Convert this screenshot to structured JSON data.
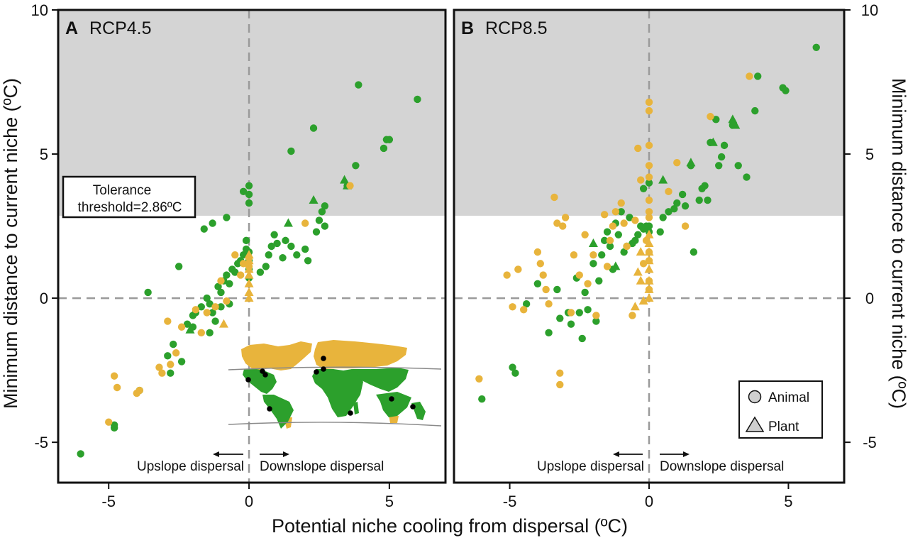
{
  "figure": {
    "xlabel": "Potential niche cooling from dispersal (ºC)",
    "ylabel_left": "Minimum distance to current niche (ºC)",
    "ylabel_right": "Minimum distance to current niche (ºC)",
    "threshold_label_line1": "Tolerance",
    "threshold_label_line2": "threshold=2.86ºC",
    "upslope_label": "Upslope dispersal",
    "downslope_label": "Downslope dispersal",
    "legend_animal": "Animal",
    "legend_plant": "Plant",
    "colors": {
      "green": "#2ca02c",
      "orange": "#e8b43c",
      "shade": "#d4d4d4",
      "frame": "#111111",
      "zero_line": "#9a9a9a"
    }
  },
  "chart_data": [
    {
      "type": "scatter",
      "panel_letter": "A",
      "panel_name": "RCP4.5",
      "xlim": [
        -6.8,
        7.0
      ],
      "ylim": [
        -6.4,
        10.0
      ],
      "xticks": [
        -5,
        0,
        5
      ],
      "xtick_labels": [
        "-5",
        "0",
        "5"
      ],
      "yticks": [
        -5,
        0,
        5,
        10
      ],
      "ytick_labels": [
        "-5",
        "0",
        "5",
        "10"
      ],
      "threshold": 2.86,
      "series": [
        {
          "color": "green",
          "marker": "circle",
          "points": [
            [
              -6.0,
              -5.4
            ],
            [
              -4.8,
              -4.4
            ],
            [
              -4.8,
              -4.5
            ],
            [
              -3.9,
              -3.2
            ],
            [
              -3.6,
              0.2
            ],
            [
              -2.9,
              -2.0
            ],
            [
              -2.8,
              -2.6
            ],
            [
              -2.7,
              -1.6
            ],
            [
              -2.4,
              -2.2
            ],
            [
              -2.5,
              1.1
            ],
            [
              -2.2,
              -0.9
            ],
            [
              -2.0,
              -0.6
            ],
            [
              -2.0,
              -1.0
            ],
            [
              -1.9,
              -0.5
            ],
            [
              -1.7,
              -0.3
            ],
            [
              -1.5,
              0.0
            ],
            [
              -1.4,
              -0.2
            ],
            [
              -1.4,
              -1.2
            ],
            [
              -1.3,
              -0.5
            ],
            [
              -1.2,
              -0.8
            ],
            [
              -1.1,
              0.4
            ],
            [
              -1.0,
              0.2
            ],
            [
              -1.0,
              -0.3
            ],
            [
              -0.9,
              0.6
            ],
            [
              -0.8,
              0.8
            ],
            [
              -0.7,
              0.5
            ],
            [
              -0.7,
              -0.2
            ],
            [
              -0.6,
              1.0
            ],
            [
              -0.5,
              0.9
            ],
            [
              -0.4,
              1.2
            ],
            [
              -0.3,
              1.3
            ],
            [
              -0.2,
              1.5
            ],
            [
              -0.1,
              1.7
            ],
            [
              -0.1,
              2.0
            ],
            [
              0.0,
              1.6
            ],
            [
              0.0,
              1.3
            ],
            [
              0.0,
              1.0
            ],
            [
              0.0,
              0.7
            ],
            [
              -0.2,
              3.7
            ],
            [
              0.0,
              3.6
            ],
            [
              0.0,
              3.9
            ],
            [
              0.0,
              3.3
            ],
            [
              -1.6,
              2.4
            ],
            [
              -1.3,
              2.6
            ],
            [
              -0.8,
              2.8
            ],
            [
              0.4,
              0.9
            ],
            [
              0.6,
              1.1
            ],
            [
              0.7,
              1.5
            ],
            [
              0.8,
              1.8
            ],
            [
              0.9,
              2.2
            ],
            [
              1.0,
              1.9
            ],
            [
              1.2,
              1.4
            ],
            [
              1.3,
              2.0
            ],
            [
              1.5,
              1.8
            ],
            [
              1.7,
              1.5
            ],
            [
              2.0,
              1.7
            ],
            [
              2.1,
              1.3
            ],
            [
              2.4,
              2.3
            ],
            [
              2.5,
              2.7
            ],
            [
              2.6,
              3.0
            ],
            [
              2.7,
              3.2
            ],
            [
              2.7,
              2.5
            ],
            [
              1.5,
              5.1
            ],
            [
              2.3,
              5.9
            ],
            [
              3.5,
              3.9
            ],
            [
              3.8,
              4.6
            ],
            [
              3.9,
              7.4
            ],
            [
              4.8,
              5.2
            ],
            [
              4.9,
              5.5
            ],
            [
              5.0,
              5.5
            ],
            [
              6.0,
              6.9
            ]
          ]
        },
        {
          "color": "green",
          "marker": "triangle",
          "points": [
            [
              -2.1,
              -1.1
            ],
            [
              1.4,
              2.6
            ],
            [
              2.3,
              3.4
            ],
            [
              3.4,
              4.1
            ],
            [
              3.5,
              3.9
            ]
          ]
        },
        {
          "color": "orange",
          "marker": "circle",
          "points": [
            [
              -5.0,
              -4.3
            ],
            [
              -4.8,
              -2.7
            ],
            [
              -4.7,
              -3.1
            ],
            [
              -4.0,
              -3.3
            ],
            [
              -3.9,
              -3.2
            ],
            [
              -3.2,
              -2.4
            ],
            [
              -3.1,
              -2.6
            ],
            [
              -2.9,
              -0.8
            ],
            [
              -2.8,
              -2.3
            ],
            [
              -2.6,
              -1.9
            ],
            [
              -2.4,
              -1.0
            ],
            [
              -1.9,
              -0.4
            ],
            [
              -1.7,
              -1.2
            ],
            [
              -1.5,
              -0.5
            ],
            [
              -1.2,
              -0.3
            ],
            [
              -1.0,
              0.6
            ],
            [
              -0.8,
              -0.1
            ],
            [
              -0.5,
              1.5
            ],
            [
              -0.3,
              0.8
            ],
            [
              -0.2,
              1.2
            ],
            [
              0.0,
              1.4
            ],
            [
              0.0,
              1.1
            ],
            [
              2.0,
              2.6
            ],
            [
              3.6,
              3.9
            ]
          ]
        },
        {
          "color": "orange",
          "marker": "triangle",
          "points": [
            [
              -0.9,
              -0.9
            ],
            [
              0.0,
              0.2
            ],
            [
              0.0,
              0.5
            ],
            [
              0.0,
              0.8
            ],
            [
              0.0,
              1.0
            ],
            [
              0.0,
              1.3
            ],
            [
              0.0,
              1.5
            ],
            [
              0.0,
              0.0
            ]
          ]
        }
      ]
    },
    {
      "type": "scatter",
      "panel_letter": "B",
      "panel_name": "RCP8.5",
      "xlim": [
        -7.0,
        7.0
      ],
      "ylim": [
        -6.4,
        10.0
      ],
      "xticks": [
        -5,
        0,
        5
      ],
      "xtick_labels": [
        "-5",
        "0",
        "5"
      ],
      "yticks": [
        -5,
        0,
        5,
        10
      ],
      "ytick_labels": [
        "-5",
        "0",
        "5",
        "10"
      ],
      "threshold": 2.86,
      "series": [
        {
          "color": "green",
          "marker": "circle",
          "points": [
            [
              -6.0,
              -3.5
            ],
            [
              -4.9,
              -2.4
            ],
            [
              -4.8,
              -2.6
            ],
            [
              -4.4,
              -0.2
            ],
            [
              -4.0,
              0.5
            ],
            [
              -3.6,
              -1.2
            ],
            [
              -3.3,
              0.3
            ],
            [
              -3.2,
              -0.7
            ],
            [
              -2.9,
              -0.5
            ],
            [
              -2.8,
              -0.9
            ],
            [
              -2.6,
              0.7
            ],
            [
              -2.5,
              -0.5
            ],
            [
              -2.4,
              -1.4
            ],
            [
              -2.3,
              0.2
            ],
            [
              -2.2,
              -0.4
            ],
            [
              -2.0,
              1.2
            ],
            [
              -1.9,
              -0.8
            ],
            [
              -1.8,
              0.6
            ],
            [
              -1.7,
              1.5
            ],
            [
              -1.6,
              2.0
            ],
            [
              -1.5,
              2.3
            ],
            [
              -1.4,
              1.8
            ],
            [
              -1.3,
              1.0
            ],
            [
              -1.2,
              2.6
            ],
            [
              -1.1,
              2.2
            ],
            [
              -1.0,
              3.0
            ],
            [
              -0.9,
              1.6
            ],
            [
              -0.8,
              1.8
            ],
            [
              -0.7,
              2.8
            ],
            [
              -0.6,
              1.9
            ],
            [
              -0.5,
              2.0
            ],
            [
              -0.4,
              2.2
            ],
            [
              -0.3,
              2.5
            ],
            [
              -0.2,
              2.4
            ],
            [
              -0.1,
              2.5
            ],
            [
              0.0,
              2.5
            ],
            [
              0.0,
              2.3
            ],
            [
              -0.2,
              3.8
            ],
            [
              0.0,
              4.0
            ],
            [
              0.4,
              2.3
            ],
            [
              0.5,
              2.8
            ],
            [
              0.7,
              3.0
            ],
            [
              0.9,
              3.1
            ],
            [
              1.0,
              3.3
            ],
            [
              1.2,
              3.6
            ],
            [
              1.3,
              3.2
            ],
            [
              1.5,
              4.6
            ],
            [
              1.6,
              1.6
            ],
            [
              1.8,
              3.4
            ],
            [
              1.9,
              3.8
            ],
            [
              2.0,
              3.9
            ],
            [
              2.1,
              3.4
            ],
            [
              2.2,
              5.4
            ],
            [
              2.4,
              6.2
            ],
            [
              2.5,
              4.6
            ],
            [
              2.6,
              4.9
            ],
            [
              2.7,
              5.3
            ],
            [
              3.0,
              6.0
            ],
            [
              3.2,
              4.6
            ],
            [
              3.5,
              4.2
            ],
            [
              3.8,
              6.5
            ],
            [
              3.9,
              7.7
            ],
            [
              4.8,
              7.3
            ],
            [
              4.9,
              7.2
            ],
            [
              6.0,
              8.7
            ]
          ]
        },
        {
          "color": "green",
          "marker": "triangle",
          "points": [
            [
              -2.0,
              1.9
            ],
            [
              -1.2,
              1.1
            ],
            [
              0.5,
              4.1
            ],
            [
              1.5,
              4.7
            ],
            [
              2.3,
              5.4
            ],
            [
              3.0,
              6.2
            ],
            [
              3.1,
              6.0
            ]
          ]
        },
        {
          "color": "orange",
          "marker": "circle",
          "points": [
            [
              -6.1,
              -2.8
            ],
            [
              -5.1,
              0.8
            ],
            [
              -4.9,
              -0.3
            ],
            [
              -4.7,
              1.0
            ],
            [
              -4.5,
              -0.4
            ],
            [
              -4.0,
              1.6
            ],
            [
              -3.9,
              1.2
            ],
            [
              -3.8,
              0.8
            ],
            [
              -3.7,
              0.3
            ],
            [
              -3.6,
              -0.2
            ],
            [
              -3.4,
              3.5
            ],
            [
              -3.3,
              2.6
            ],
            [
              -3.2,
              -2.6
            ],
            [
              -3.2,
              -3.0
            ],
            [
              -3.1,
              2.5
            ],
            [
              -3.0,
              2.8
            ],
            [
              -2.8,
              -0.5
            ],
            [
              -2.7,
              1.5
            ],
            [
              -2.5,
              0.8
            ],
            [
              -2.3,
              2.2
            ],
            [
              -2.2,
              0.5
            ],
            [
              -2.0,
              1.5
            ],
            [
              -1.9,
              -0.6
            ],
            [
              -1.6,
              2.9
            ],
            [
              -1.5,
              1.1
            ],
            [
              -1.4,
              2.0
            ],
            [
              -1.3,
              2.5
            ],
            [
              -1.2,
              3.0
            ],
            [
              -1.0,
              3.3
            ],
            [
              -0.9,
              2.6
            ],
            [
              -0.8,
              1.8
            ],
            [
              -0.6,
              -0.6
            ],
            [
              -0.5,
              2.7
            ],
            [
              -0.4,
              5.2
            ],
            [
              -0.3,
              4.1
            ],
            [
              -0.2,
              1.2
            ],
            [
              -0.1,
              2.0
            ],
            [
              0.0,
              6.8
            ],
            [
              0.0,
              6.5
            ],
            [
              0.0,
              5.3
            ],
            [
              0.0,
              4.6
            ],
            [
              0.0,
              4.2
            ],
            [
              0.0,
              3.4
            ],
            [
              0.0,
              3.0
            ],
            [
              0.0,
              2.8
            ],
            [
              0.0,
              1.6
            ],
            [
              0.0,
              1.3
            ],
            [
              0.0,
              0.6
            ],
            [
              0.0,
              0.3
            ],
            [
              0.7,
              3.7
            ],
            [
              1.0,
              4.7
            ],
            [
              1.3,
              2.5
            ],
            [
              2.2,
              6.3
            ],
            [
              3.6,
              7.7
            ]
          ]
        },
        {
          "color": "orange",
          "marker": "triangle",
          "points": [
            [
              -0.5,
              -0.3
            ],
            [
              -0.4,
              0.9
            ],
            [
              -0.3,
              1.6
            ],
            [
              -0.3,
              0.6
            ],
            [
              -0.2,
              -0.1
            ],
            [
              0.0,
              0.0
            ],
            [
              0.0,
              0.3
            ],
            [
              0.0,
              0.6
            ],
            [
              0.0,
              1.0
            ],
            [
              0.0,
              1.3
            ],
            [
              0.0,
              1.6
            ],
            [
              0.0,
              1.9
            ],
            [
              0.0,
              2.2
            ]
          ]
        }
      ]
    }
  ]
}
